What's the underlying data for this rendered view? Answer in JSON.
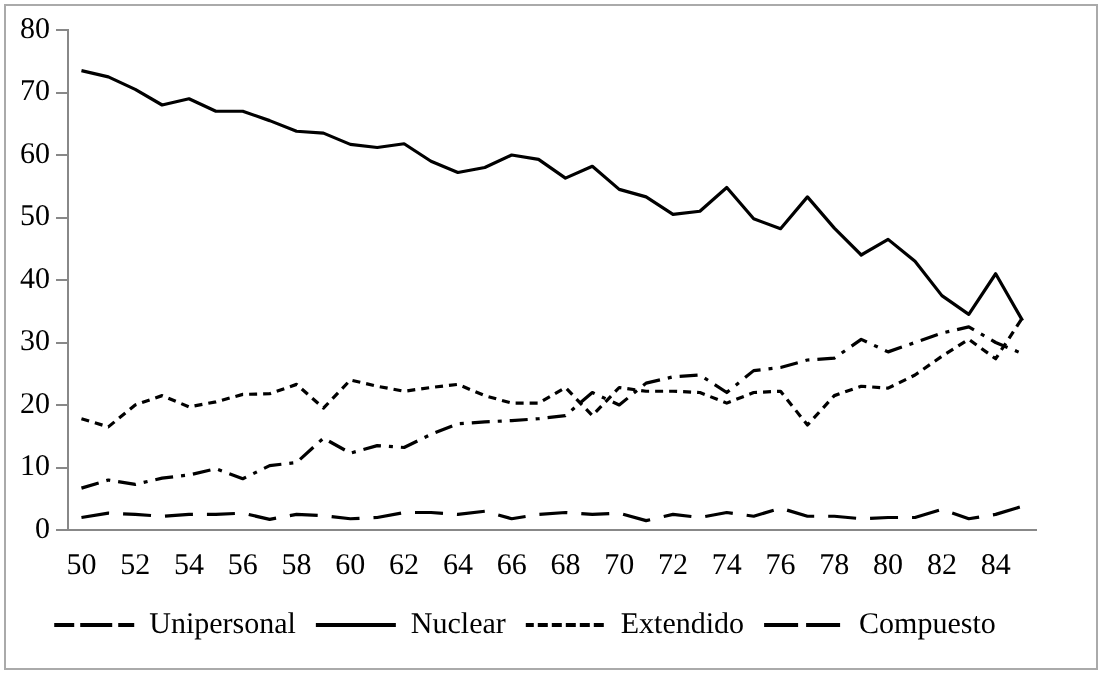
{
  "chart_data": {
    "type": "line",
    "categories": [
      "50",
      null,
      "52",
      null,
      "54",
      null,
      "56",
      null,
      "58",
      null,
      "60",
      null,
      "62",
      null,
      "64",
      null,
      "66",
      null,
      "68",
      null,
      "70",
      null,
      "72",
      null,
      "74",
      null,
      "76",
      null,
      "78",
      null,
      "80",
      null,
      "82",
      null,
      "84",
      null
    ],
    "ylim": [
      0,
      80
    ],
    "yticks": [
      0,
      10,
      20,
      30,
      40,
      50,
      60,
      70,
      80
    ],
    "grid": false,
    "legend": "bottom",
    "marker": "none",
    "series": [
      {
        "name": "Unipersonal",
        "color": "#000000",
        "line_style": "dashdot",
        "values": [
          6.7,
          8,
          7.3,
          8.3,
          8.8,
          9.8,
          8.2,
          10.3,
          10.8,
          14.7,
          12.3,
          13.5,
          13.2,
          15.3,
          17,
          17.3,
          17.5,
          17.8,
          18.3,
          22,
          20,
          23.5,
          24.5,
          24.8,
          22,
          25.5,
          26,
          27.2,
          27.5,
          30.5,
          28.5,
          30,
          31.5,
          32.5,
          30,
          28.2
        ]
      },
      {
        "name": "Nuclear",
        "color": "#000000",
        "line_style": "solid",
        "values": [
          73.5,
          72.5,
          70.5,
          68,
          69,
          67,
          67,
          65.5,
          63.8,
          63.5,
          61.7,
          61.2,
          61.8,
          59,
          57.2,
          58,
          60,
          59.3,
          56.3,
          58.2,
          54.5,
          53.3,
          50.5,
          51,
          54.8,
          49.8,
          48.2,
          53.3,
          48.3,
          44,
          46.5,
          43,
          37.5,
          34.5,
          41,
          33.5
        ]
      },
      {
        "name": "Extendido",
        "color": "#000000",
        "line_style": "dotted",
        "values": [
          17.8,
          16.5,
          20,
          21.5,
          19.7,
          20.5,
          21.7,
          21.8,
          23.3,
          19.5,
          24,
          23,
          22.2,
          22.8,
          23.3,
          21.5,
          20.3,
          20.3,
          22.8,
          18.3,
          22.8,
          22.2,
          22.2,
          22,
          20.3,
          22,
          22.2,
          16.8,
          21.5,
          23,
          22.7,
          24.8,
          27.8,
          30.5,
          27.4,
          34
        ]
      },
      {
        "name": "Compuesto",
        "color": "#000000",
        "line_style": "dashed",
        "values": [
          2,
          2.7,
          2.5,
          2.2,
          2.5,
          2.5,
          2.7,
          1.7,
          2.5,
          2.3,
          1.8,
          2,
          2.8,
          2.8,
          2.5,
          3,
          1.8,
          2.5,
          2.8,
          2.5,
          2.7,
          1.5,
          2.5,
          2,
          2.8,
          2.2,
          3.5,
          2.2,
          2.2,
          1.8,
          2,
          2,
          3.3,
          1.8,
          2.5,
          3.8
        ]
      }
    ]
  }
}
